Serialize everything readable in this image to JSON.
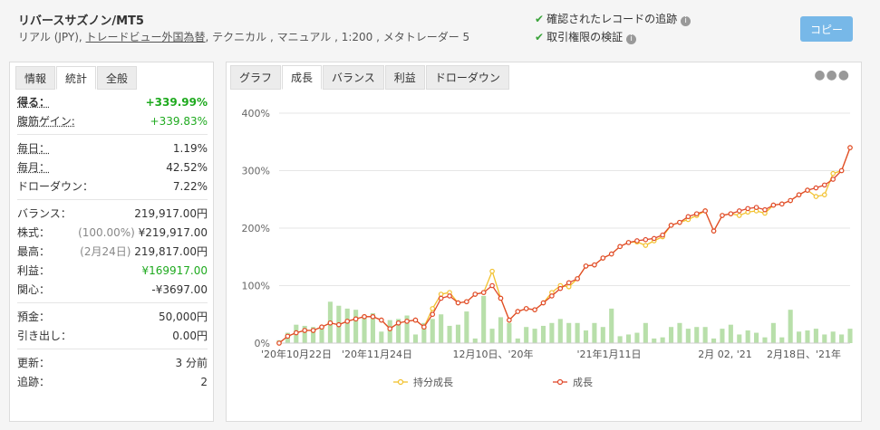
{
  "header": {
    "system_name": "リバースサズノン/MT5",
    "sub_prefix": "リアル (JPY), ",
    "sub_link": "トレードビュー外国為替",
    "sub_suffix": ", テクニカル , マニュアル , 1:200 , メタトレーダー 5",
    "verify_records": "確認されたレコードの追跡",
    "verify_rights": "取引権限の検証",
    "copy_label": "コピー"
  },
  "left_tabs": [
    "情報",
    "統計",
    "全般"
  ],
  "stats": {
    "gain_label": "得る：",
    "gain_value": "+339.99%",
    "abs_gain_label": "腹筋ゲイン:",
    "abs_gain_value": "+339.83%",
    "daily_label": "毎日：",
    "daily_value": "1.19%",
    "monthly_label": "毎月：",
    "monthly_value": "42.52%",
    "drawdown_label": "ドローダウン：",
    "drawdown_value": "7.22%",
    "balance_label": "バランス：",
    "balance_value": "219,917.00円",
    "equity_label": "株式：",
    "equity_pct": "(100.00%)",
    "equity_value": "¥219,917.00",
    "highest_label": "最高：",
    "highest_date": "(2月24日)",
    "highest_value": "219,817.00円",
    "profit_label": "利益：",
    "profit_value": "¥169917.00",
    "interest_label": "関心：",
    "interest_value": "-¥3697.00",
    "deposits_label": "預金：",
    "deposits_value": "50,000円",
    "withdrawals_label": "引き出し：",
    "withdrawals_value": "0.00円",
    "updated_label": "更新：",
    "updated_value": "3 分前",
    "tracking_label": "追跡：",
    "tracking_value": "2"
  },
  "right_tabs": [
    "グラフ",
    "成長",
    "バランス",
    "利益",
    "ドローダウン"
  ],
  "more_icon": "ellipsis-icon",
  "colors": {
    "growth": "#e0492b",
    "equity": "#f2c12e",
    "bars": "#b8dfaa",
    "copy": "#77b8e8",
    "green": "#1faa1f"
  },
  "chart_data": {
    "type": "line",
    "ylim": [
      0,
      400
    ],
    "yticks": [
      "0%",
      "100%",
      "200%",
      "300%",
      "400%"
    ],
    "xticks": [
      "'20年10月22日",
      "'20年11月24日",
      "12月10日、'20年",
      "'21年1月11日",
      "2月 02, '21",
      "2月18日、'21年"
    ],
    "legend": [
      "持分成長",
      "成長"
    ],
    "growth": [
      0,
      12,
      18,
      22,
      22,
      28,
      35,
      32,
      38,
      42,
      46,
      46,
      40,
      25,
      35,
      38,
      40,
      28,
      50,
      78,
      82,
      70,
      72,
      85,
      88,
      100,
      78,
      40,
      55,
      60,
      58,
      70,
      82,
      95,
      105,
      112,
      134,
      136,
      148,
      155,
      168,
      175,
      178,
      180,
      182,
      188,
      205,
      210,
      220,
      225,
      230,
      195,
      222,
      225,
      230,
      234,
      236,
      232,
      240,
      242,
      248,
      258,
      266,
      270,
      275,
      285,
      300,
      340
    ],
    "equity": [
      0,
      12,
      18,
      22,
      22,
      28,
      35,
      32,
      38,
      42,
      46,
      46,
      40,
      25,
      35,
      38,
      40,
      28,
      60,
      85,
      88,
      70,
      72,
      85,
      88,
      125,
      78,
      40,
      55,
      60,
      58,
      70,
      88,
      100,
      98,
      112,
      134,
      136,
      148,
      155,
      168,
      175,
      176,
      170,
      178,
      185,
      205,
      210,
      215,
      222,
      230,
      195,
      222,
      225,
      222,
      228,
      230,
      226,
      240,
      242,
      248,
      258,
      266,
      255,
      258,
      295,
      300,
      340
    ],
    "bars": [
      5,
      18,
      32,
      30,
      28,
      25,
      72,
      65,
      60,
      58,
      48,
      52,
      20,
      40,
      42,
      48,
      15,
      35,
      42,
      50,
      30,
      32,
      55,
      8,
      82,
      25,
      45,
      35,
      8,
      28,
      25,
      30,
      35,
      42,
      35,
      35,
      22,
      35,
      28,
      60,
      12,
      15,
      18,
      35,
      8,
      10,
      28,
      35,
      25,
      28,
      28,
      8,
      25,
      32,
      15,
      22,
      18,
      10,
      35,
      10,
      58,
      20,
      22,
      25,
      15,
      20,
      15,
      25
    ]
  }
}
